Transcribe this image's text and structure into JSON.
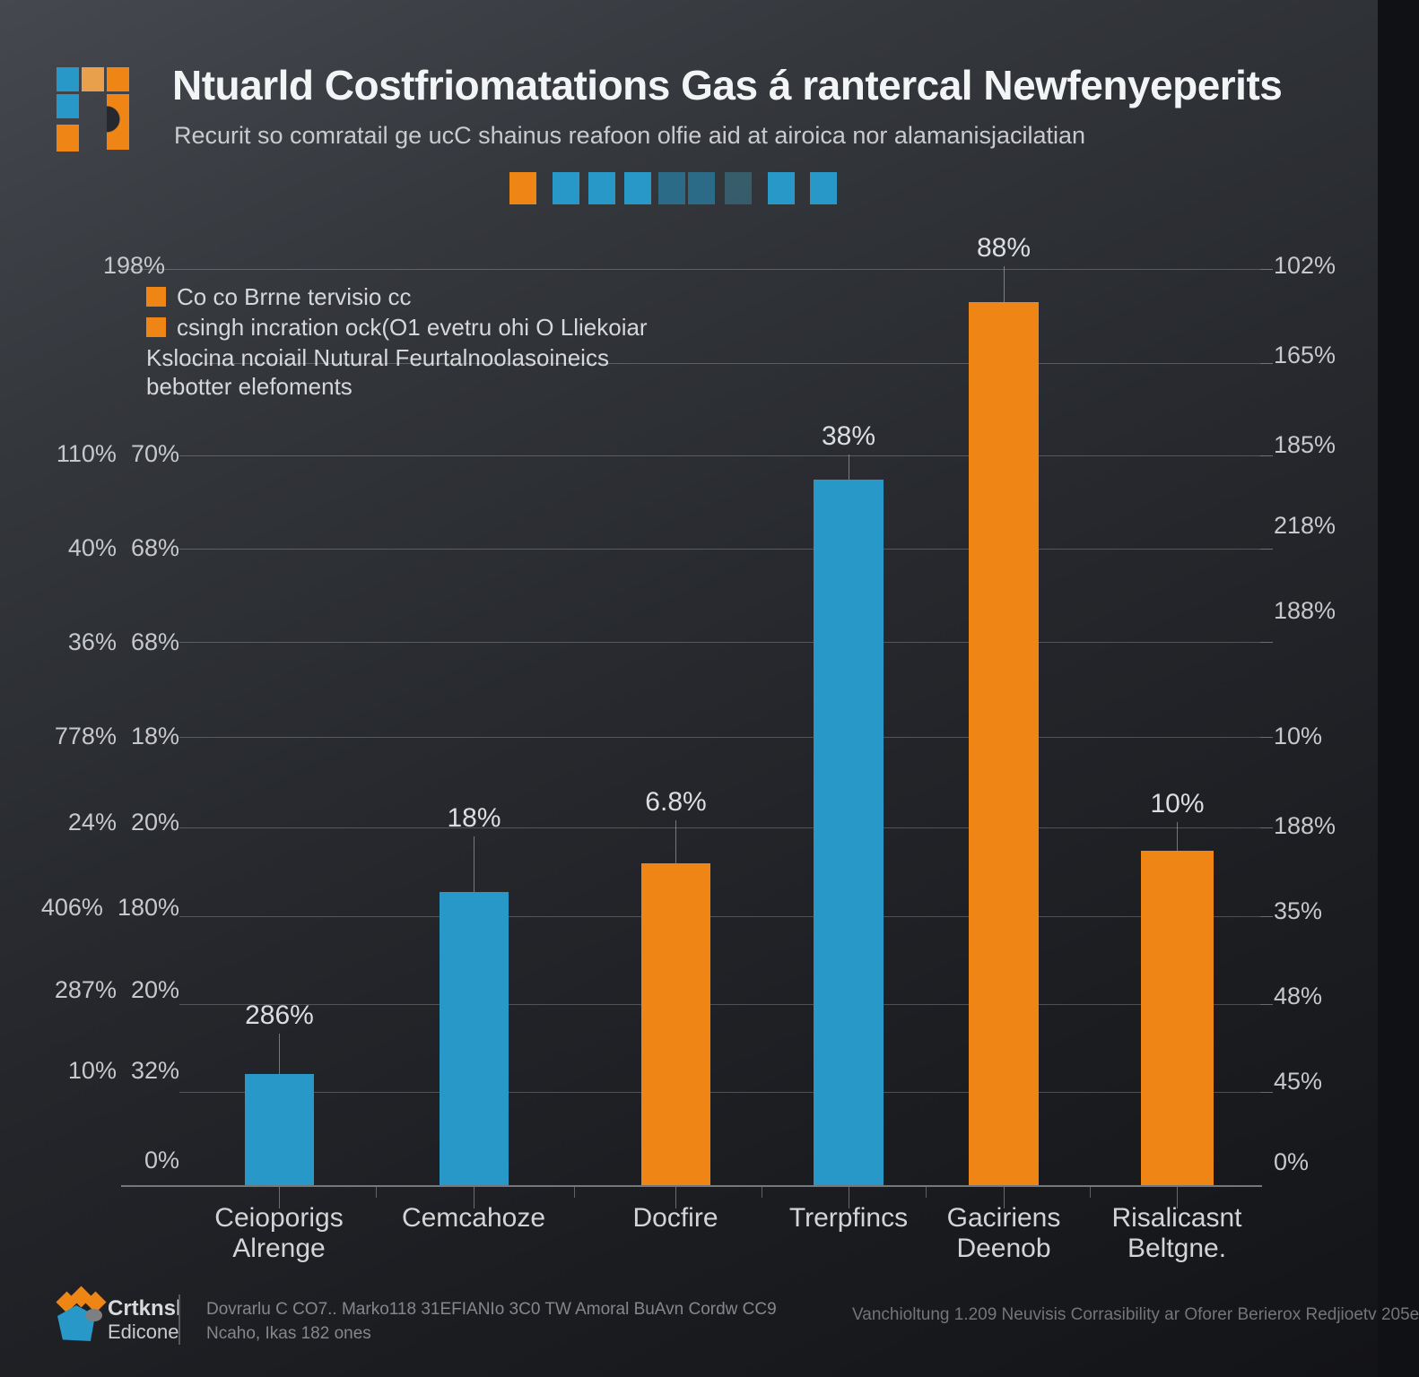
{
  "header": {
    "title": "Ntuarld Costfriomatations Gas á rantercal Newfenyeperits",
    "subtitle": "Recurit so comratail ge ucC shainus reafoon olfie aid at airoica nor alamanisjacilatian"
  },
  "palette": {
    "orange": "#EE8514",
    "blue": "#2798C8",
    "background": "#26282d",
    "gridline": "rgba(255,255,255,0.22)",
    "text": "#c6c8cb"
  },
  "legend": {
    "items": [
      {
        "swatch_color": "#EE8514",
        "label": "Co co Brrne tervisio cc"
      },
      {
        "swatch_color": "#EE8514",
        "label": "csingh incration ock(O1 evetru ohi O Lliekoiar"
      }
    ],
    "note_line1": "Kslocina ncoiail Nutural Feurtalnoolasoineics",
    "note_line2": "bebotter elefoments"
  },
  "chart_data": {
    "type": "bar",
    "title": "Ntuarld Costfriomatations Gas á rantercal Newfenyeperits",
    "categories": [
      "Ceioporigs Alrenge",
      "Cemcahoze",
      "Docfire",
      "Trerpfincs",
      "Gaciriens Deenob",
      "Risalicasnt Beltgne."
    ],
    "bars": [
      {
        "label": "286%",
        "height_pct": 12.1,
        "color": "#2798C8"
      },
      {
        "label": "18%",
        "height_pct": 32.0,
        "color": "#2798C8"
      },
      {
        "label": "6.8%",
        "height_pct": 35.1,
        "color": "#EE8514"
      },
      {
        "label": "38%",
        "height_pct": 77.0,
        "color": "#2798C8"
      },
      {
        "label": "88%",
        "height_pct": 96.4,
        "color": "#EE8514"
      },
      {
        "label": "10%",
        "height_pct": 36.5,
        "color": "#EE8514"
      }
    ],
    "categories_line1": [
      "Ceioporigs",
      "Cemcahoze",
      "Docfire",
      "Trerpfincs",
      "Gaciriens",
      "Risalicasnt"
    ],
    "categories_line2": [
      "Alrenge",
      "",
      "",
      "",
      "Deenob",
      "Beltgne."
    ],
    "left_axis_rows": [
      {
        "a": "198%",
        "b": ""
      },
      {
        "a": "110%",
        "b": "70%"
      },
      {
        "a": "40%",
        "b": "68%"
      },
      {
        "a": "36%",
        "b": "68%"
      },
      {
        "a": "778%",
        "b": "18%"
      },
      {
        "a": "24%",
        "b": "20%"
      },
      {
        "a": "406%",
        "b": "180%"
      },
      {
        "a": "287%",
        "b": "20%"
      },
      {
        "a": "10%",
        "b": "32%"
      },
      {
        "a": "",
        "b": "0%"
      }
    ],
    "right_axis_labels": [
      "102%",
      "165%",
      "185%",
      "218%",
      "188%",
      "10%",
      "188%",
      "35%",
      "48%",
      "45%",
      "0%"
    ],
    "ylim": [
      "0%",
      "100%"
    ],
    "grid": "on",
    "legend_position": "top-left"
  },
  "footer": {
    "brand_line1": "Crtknsl",
    "brand_line2": "Edicone",
    "address_line1": "Dovrarlu C CO7.. Marko118 31EFIANIo 3C0 TW Amoral BuAvn Cordw CC9",
    "address_line2": "Ncaho, Ikas 182 ones",
    "right_text": "Vanchioltung 1.209 Neuvisis Corrasibility ar Oforer Berierox Redjioetv 205e"
  }
}
